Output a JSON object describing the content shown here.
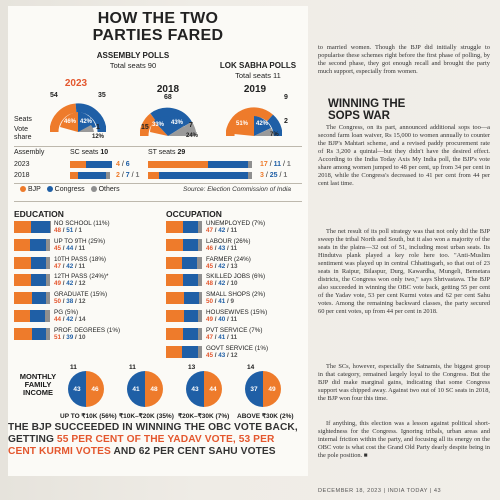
{
  "infographic": {
    "title_line1": "HOW THE TWO",
    "title_line2": "PARTIES FARED",
    "assembly": {
      "heading": "ASSEMBLY POLLS",
      "subheading": "Total seats 90",
      "year_a": "2023",
      "year_b": "2018",
      "y2023": {
        "bjp_seats": "54",
        "cong_seats": "35",
        "others_seats": "1",
        "bjp_share": "46%",
        "cong_share": "42%",
        "others_share": "12%"
      },
      "y2018": {
        "bjp_seats": "15",
        "cong_seats": "68",
        "others_seats": "7",
        "bjp_share": "33%",
        "cong_share": "43%",
        "others_share": "24%"
      }
    },
    "loksabha": {
      "heading": "LOK SABHA POLLS",
      "subheading": "Total seats 11",
      "year": "2019",
      "bjp_seats": "9",
      "cong_seats": "2",
      "bjp_share": "51%",
      "cong_share": "42%",
      "others_share": "7%"
    },
    "side_labels": {
      "seats": "Seats",
      "vote_share": "Vote share"
    },
    "reserved": {
      "assembly_label": "Assembly",
      "sc_label": "SC seats",
      "sc_total": "10",
      "st_label": "ST seats",
      "st_total": "29",
      "year_2023": "2023",
      "year_2018": "2018",
      "sc_2023": [
        "4",
        "6"
      ],
      "sc_2018": [
        "2",
        "7",
        "1"
      ],
      "st_2023": [
        "17",
        "11",
        "1"
      ],
      "st_2018": [
        "3",
        "25",
        "1"
      ]
    },
    "legend": {
      "bjp": "BJP",
      "congress": "Congress",
      "others": "Others"
    },
    "source": "Source: Election Commission of India",
    "education": {
      "heading": "EDUCATION",
      "rows": [
        {
          "label": "NO SCHOOL (11%)",
          "values": "48 / 51 / 1"
        },
        {
          "label": "UP TO 9TH (25%)",
          "values": "45 / 44 / 11"
        },
        {
          "label": "10TH PASS (18%)",
          "values": "47 / 42 / 11"
        },
        {
          "label": "12TH PASS (24%)*",
          "values": "49 / 42 / 12"
        },
        {
          "label": "GRADUATE (15%)",
          "values": "50 / 38 / 12"
        },
        {
          "label": "PG (5%)",
          "values": "44 / 42 / 14"
        },
        {
          "label": "PROF. DEGREES (1%)",
          "values": "51 / 39 / 10"
        }
      ]
    },
    "occupation": {
      "heading": "OCCUPATION",
      "rows": [
        {
          "label": "UNEMPLOYED (7%)",
          "values": "47 / 42 / 11"
        },
        {
          "label": "LABOUR (26%)",
          "values": "46 / 43 / 11"
        },
        {
          "label": "FARMER (24%)",
          "values": "45 / 42 / 13"
        },
        {
          "label": "SKILLED JOBS (6%)",
          "values": "48 / 42 / 10"
        },
        {
          "label": "SMALL SHOPS (2%)",
          "values": "50 / 41 / 9"
        },
        {
          "label": "HOUSEWIVES (15%)",
          "values": "49 / 40 / 11"
        },
        {
          "label": "PVT SERVICE (7%)",
          "values": "47 / 41 / 11"
        },
        {
          "label": "GOVT SERVICE (1%)",
          "values": "45 / 43 / 12"
        }
      ]
    },
    "income": {
      "heading_line1": "MONTHLY",
      "heading_line2": "FAMILY",
      "heading_line3": "INCOME",
      "groups": [
        {
          "label": "UP TO ₹10K (56%)",
          "bjp": "43",
          "cong": "46",
          "others": "11"
        },
        {
          "label": "₹10K–₹20K (35%)",
          "bjp": "41",
          "cong": "48",
          "others": "11"
        },
        {
          "label": "₹20K–₹30K (7%)",
          "bjp": "43",
          "cong": "44",
          "others": "13"
        },
        {
          "label": "ABOVE ₹30K (2%)",
          "bjp": "37",
          "cong": "49",
          "others": "14"
        }
      ]
    },
    "quote": {
      "p1": "THE BJP SUCCEEDED IN WINNING THE OBC VOTE BACK, GETTING ",
      "hl1": "55 PER CENT OF THE YADAV VOTE, 53 PER CENT KURMI VOTES",
      "p2": " AND 62 PER CENT SAHU VOTES"
    },
    "colors": {
      "bjp": "#ee7b2b",
      "congress": "#1f5fa6",
      "others": "#8f8f8f"
    }
  },
  "article": {
    "para1": "to married women. Though the BJP did initially struggle to popularise these schemes right before the first phase of polling, by the second phase, they got enough recall and brought the party much support, especially from women.",
    "heading_line1": "WINNING THE",
    "heading_line2": "SOPS WAR",
    "para2": "The Congress, on its part, announced additional sops too—a second farm loan waiver, Rs 15,000 to women annually to counter the BJP's Mahtari scheme, and a revised paddy procurement rate of Rs 3,200 a quintal—but they didn't have the desired effect. According to the India Today Axis My India poll, the BJP's vote share among women jumped to 48 per cent, up from 34 per cent in 2018, while the Congress's decreased to 41 per cent from 44 per cent last time.",
    "para3": "The net result of its poll strategy was that not only did the BJP sweep the tribal North and South, but it also won a majority of the seats in the plains—32 out of 51, including most urban seats. Its Hindutva plank played a key role here too. \"Anti-Muslim sentiment was played up in central Chhattisgarh, so that out of 23 seats in Raipur, Bilaspur, Durg, Kawardha, Mungeli, Bemetara districts, the Congress won only two,\" says Shrivastava. The BJP also succeeded in winning the OBC vote back, getting 55 per cent of the Yadav vote, 53 per cent Kurmi votes and 62 per cent Sahu votes. Among the remaining backward classes, the party secured 60 per cent votes, up from 44 per cent in 2018.",
    "para4": "The SCs, however, especially the Satnamis, the biggest group in that category, remained largely loyal to the Congress. But the BJP did make marginal gains, indicating that some Congress support was chipped away. Against two out of 10 SC seats in 2018, the BJP won four this time.",
    "para5": "If anything, this election was a lesson against political short-sightedness for the Congress. Ignoring tribals, urban areas and internal friction within the party, and focusing all its energy on the OBC vote is what cost the Grand Old Party dearly despite being in the pole position. ■",
    "footer": "DECEMBER 18, 2023 | INDIA TODAY | 43"
  }
}
